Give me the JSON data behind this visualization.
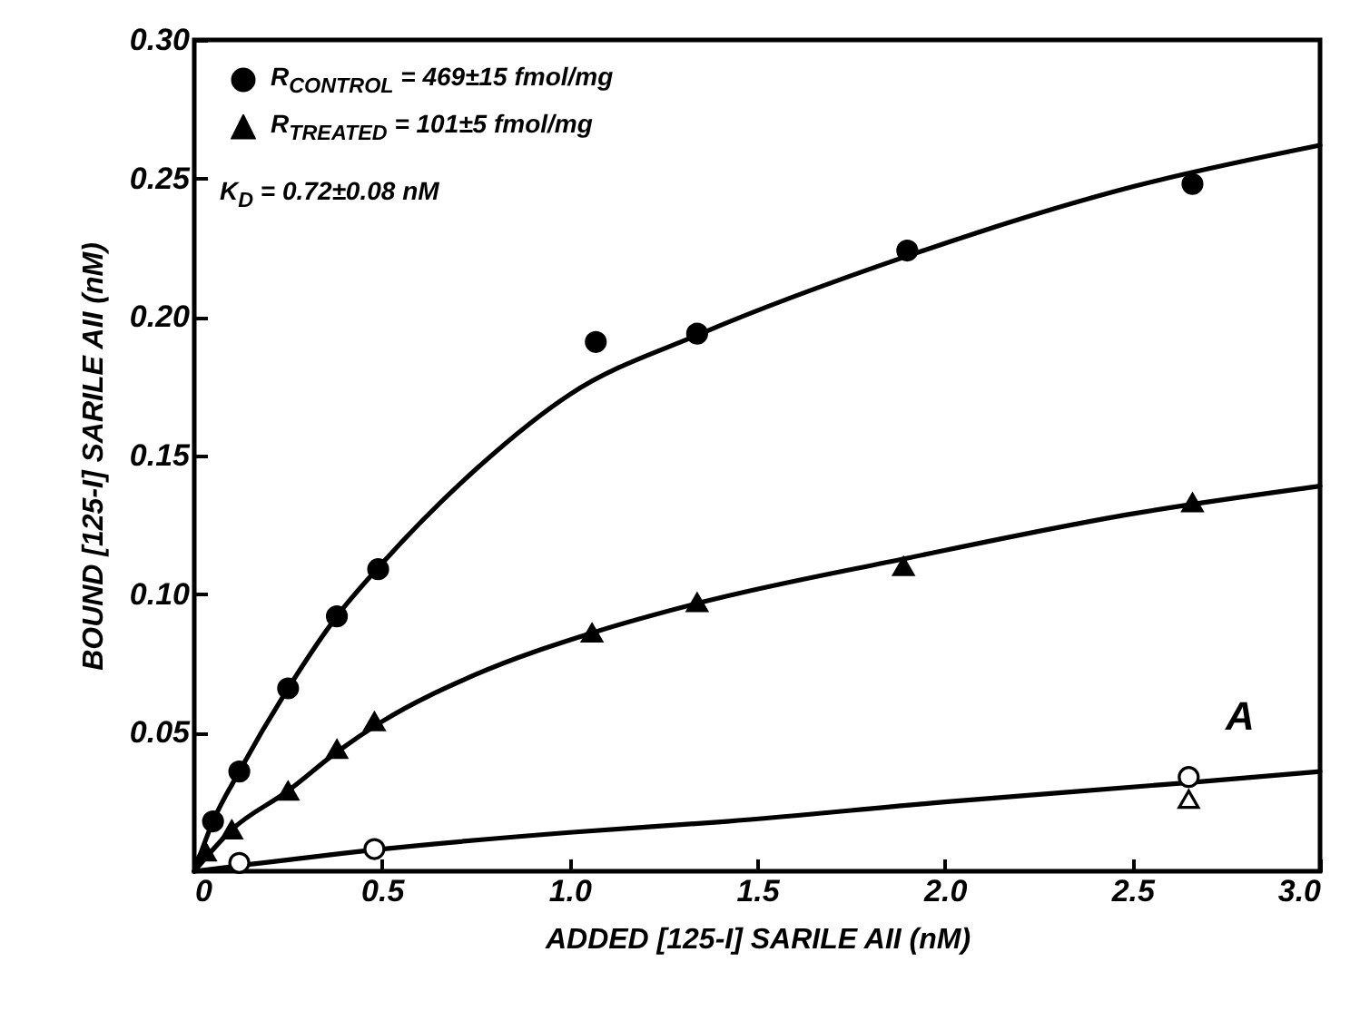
{
  "chart_data": {
    "type": "scatter",
    "xlabel": "ADDED [125-I] SARILE AII (nM)",
    "ylabel": "BOUND [125-I] SARILE AII (nM)",
    "annotations": [
      "K$_{D}$ = 0.72±0.08 nM",
      "A"
    ],
    "xlim": [
      0,
      3.0
    ],
    "xticks": [
      0,
      {
        "value": 0.5,
        "label": "0.5"
      },
      {
        "value": 1,
        "label": "1.0"
      },
      {
        "value": 1.5,
        "label": "1.5"
      },
      {
        "value": 2,
        "label": "2.0"
      },
      {
        "value": 2.5,
        "label": "2.5"
      },
      {
        "value": 3,
        "label": "3.0"
      }
    ],
    "ylim": [
      0,
      0.3
    ],
    "yticks": [
      {
        "value": 0.05,
        "label": "0.05"
      },
      {
        "value": 0.1,
        "label": "0.10"
      },
      {
        "value": 0.15,
        "label": "0.15"
      },
      {
        "value": 0.2,
        "label": "0.20"
      },
      {
        "value": 0.25,
        "label": "0.25"
      },
      {
        "value": 0.3,
        "label": "0.30"
      }
    ],
    "legend": "top left",
    "series": [
      {
        "type": "line",
        "color": "#000000",
        "marker": "none",
        "x": [
          0,
          0.05,
          0.12,
          0.25,
          0.38,
          0.5,
          0.75,
          1.0,
          1.35,
          1.9,
          2.5,
          3.0
        ],
        "values": [
          0,
          0.018,
          0.036,
          0.066,
          0.092,
          0.111,
          0.145,
          0.172,
          0.194,
          0.222,
          0.247,
          0.262
        ]
      },
      {
        "type": "line",
        "color": "#000000",
        "marker": "none",
        "x": [
          0,
          0.1,
          0.25,
          0.38,
          0.5,
          0.75,
          1.06,
          1.35,
          1.9,
          2.5,
          3.0
        ],
        "values": [
          0,
          0.015,
          0.029,
          0.043,
          0.054,
          0.071,
          0.086,
          0.097,
          0.113,
          0.129,
          0.139
        ]
      },
      {
        "type": "line",
        "color": "#000000",
        "marker": "none",
        "x": [
          0,
          0.12,
          0.5,
          1.0,
          1.42,
          2.0,
          2.65,
          3.0
        ],
        "values": [
          0,
          0.002,
          0.008,
          0.014,
          0.018,
          0.025,
          0.032,
          0.036
        ]
      },
      {
        "name": "R$_{CONTROL}$ = 469±15 fmol/mg",
        "color": "#000000",
        "marker": "circle",
        "x": [
          0.05,
          0.12,
          0.25,
          0.38,
          0.49,
          1.07,
          1.34,
          1.9,
          2.66
        ],
        "values": [
          0.018,
          0.036,
          0.066,
          0.092,
          0.109,
          0.191,
          0.194,
          0.224,
          0.248
        ]
      },
      {
        "name": "R$_{TREATED}$ = 101±5 fmol/mg",
        "color": "#000000",
        "marker": "triangle",
        "x": [
          0.03,
          0.1,
          0.25,
          0.38,
          0.48,
          1.06,
          1.34,
          1.89,
          2.66
        ],
        "values": [
          0.007,
          0.015,
          0.029,
          0.044,
          0.054,
          0.086,
          0.097,
          0.11,
          0.133
        ]
      },
      {
        "color": "#ffffff",
        "marker": "circle",
        "x": [
          0.12,
          0.48,
          2.65
        ],
        "values": [
          0.003,
          0.008,
          0.034
        ]
      },
      {
        "color": "#ffffff",
        "marker": "triangle",
        "x": [
          2.65
        ],
        "values": [
          0.026
        ]
      }
    ]
  }
}
